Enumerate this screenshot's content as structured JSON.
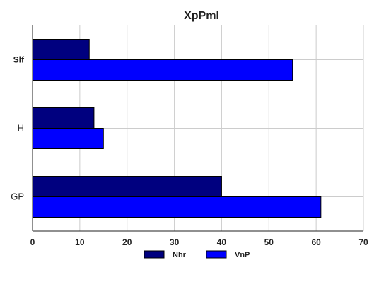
{
  "chart_data": {
    "type": "bar",
    "orientation": "horizontal",
    "title": "XpPml",
    "xlabel": "",
    "ylabel": "",
    "categories": [
      "Slf",
      "H",
      "GP"
    ],
    "category_label_styles": [
      "bold",
      "normal",
      "normal"
    ],
    "series": [
      {
        "name": "Nhr",
        "values": [
          12,
          13,
          40
        ],
        "color": "#00007f"
      },
      {
        "name": "VnP",
        "values": [
          55,
          15,
          61
        ],
        "color": "#0000ff"
      }
    ],
    "xlim": [
      0,
      70
    ],
    "xticks": [
      0,
      10,
      20,
      30,
      40,
      50,
      60,
      70
    ],
    "grid": true,
    "legend_position": "bottom-center",
    "colors": {
      "grid": "#cccccc",
      "axis": "#222222",
      "background": "#ffffff"
    }
  }
}
